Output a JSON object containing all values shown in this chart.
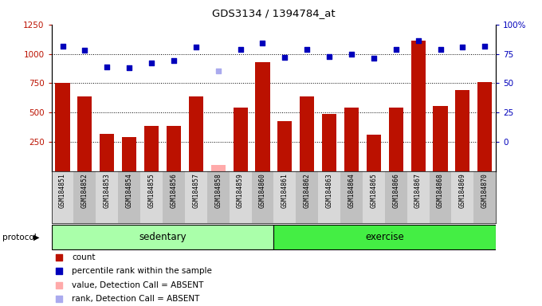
{
  "title": "GDS3134 / 1394784_at",
  "samples": [
    "GSM184851",
    "GSM184852",
    "GSM184853",
    "GSM184854",
    "GSM184855",
    "GSM184856",
    "GSM184857",
    "GSM184858",
    "GSM184859",
    "GSM184860",
    "GSM184861",
    "GSM184862",
    "GSM184863",
    "GSM184864",
    "GSM184865",
    "GSM184866",
    "GSM184867",
    "GSM184868",
    "GSM184869",
    "GSM184870"
  ],
  "bar_values": [
    750,
    640,
    320,
    295,
    390,
    390,
    640,
    55,
    545,
    930,
    430,
    640,
    490,
    540,
    310,
    545,
    1110,
    555,
    695,
    760
  ],
  "bar_absent": [
    false,
    false,
    false,
    false,
    false,
    false,
    false,
    true,
    false,
    false,
    false,
    false,
    false,
    false,
    false,
    false,
    false,
    false,
    false,
    false
  ],
  "rank_values": [
    1065,
    1030,
    890,
    885,
    920,
    940,
    1055,
    855,
    1040,
    1095,
    970,
    1040,
    975,
    1000,
    960,
    1040,
    1110,
    1040,
    1055,
    1065
  ],
  "rank_absent": [
    false,
    false,
    false,
    false,
    false,
    false,
    false,
    true,
    false,
    false,
    false,
    false,
    false,
    false,
    false,
    false,
    false,
    false,
    false,
    false
  ],
  "sedentary_count": 10,
  "exercise_count": 10,
  "groups": [
    "sedentary",
    "exercise"
  ],
  "ylim_left": [
    0,
    1250
  ],
  "yticks_left": [
    250,
    500,
    750,
    1000,
    1250
  ],
  "yticks_right_labels": [
    "0",
    "25",
    "50",
    "75",
    "100%"
  ],
  "bar_color": "#bb1100",
  "bar_absent_color": "#ffaaaa",
  "rank_color": "#0000bb",
  "rank_absent_color": "#aaaaee",
  "sedentary_color": "#aaffaa",
  "exercise_color": "#44ee44",
  "protocol_label": "protocol",
  "legend_labels": [
    "count",
    "percentile rank within the sample",
    "value, Detection Call = ABSENT",
    "rank, Detection Call = ABSENT"
  ],
  "legend_colors": [
    "#bb1100",
    "#0000bb",
    "#ffaaaa",
    "#aaaaee"
  ]
}
